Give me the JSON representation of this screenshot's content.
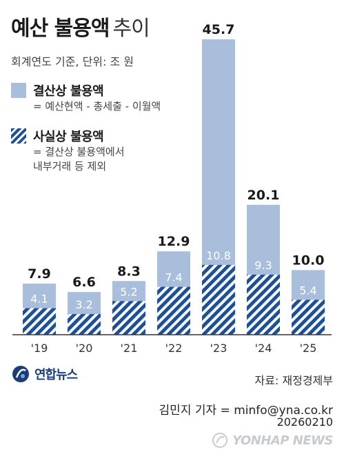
{
  "header": {
    "title_bold": "예산 불용액",
    "title_light": "추이",
    "subtitle": "회계연도 기준, 단위: 조 원"
  },
  "legend": {
    "items": [
      {
        "name": "결산상 불용액",
        "desc": [
          "= 예산현액 - 총세출 - 이월액"
        ]
      },
      {
        "name": "사실상 불용액",
        "desc": [
          "= 결산상 불용액에서",
          "내부거래 등 제외"
        ]
      }
    ]
  },
  "footer": {
    "logo_text": "연합뉴스",
    "source": "자료: 재정경제부",
    "credit": "김민지 기자 = minfo@yna.co.kr",
    "date": "20260210",
    "watermark": "YONHAP NEWS"
  },
  "colors": {
    "settlement": "#a8bedb",
    "actual": "#1c4f9e",
    "label_inner": "#ffffff"
  },
  "chart_data": {
    "type": "bar",
    "categories": [
      "'19",
      "'20",
      "'21",
      "'22",
      "'23",
      "'24",
      "'25"
    ],
    "series": [
      {
        "name": "결산상 불용액",
        "values": [
          7.9,
          6.6,
          8.3,
          12.9,
          45.7,
          20.1,
          10.0
        ],
        "labels": [
          "7.9",
          "6.6",
          "8.3",
          "12.9",
          "45.7",
          "20.1",
          "10.0"
        ]
      },
      {
        "name": "사실상 불용액",
        "values": [
          4.1,
          3.2,
          5.2,
          7.4,
          10.8,
          9.3,
          5.4
        ],
        "labels": [
          "4.1",
          "3.2",
          "5.2",
          "7.4",
          "10.8",
          "9.3",
          "5.4"
        ]
      }
    ],
    "ylim": [
      0,
      45.7
    ],
    "grid": false,
    "legend_position": "top-left"
  }
}
